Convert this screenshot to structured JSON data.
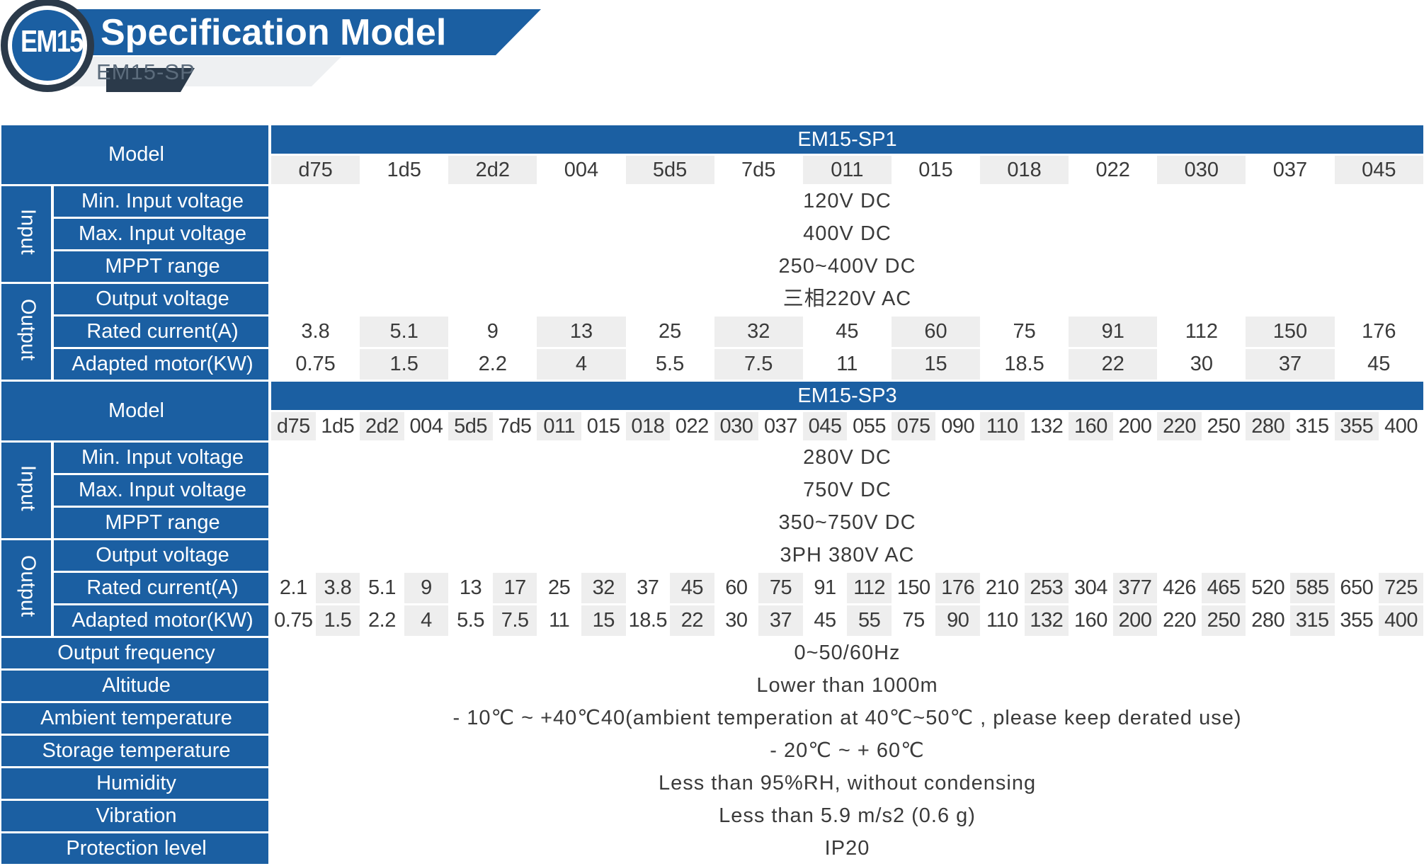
{
  "header": {
    "logo": "EM15",
    "title": "Specification Model",
    "subtitle": "EM15-SP"
  },
  "colors": {
    "primary": "#1b5fa2",
    "dark_ring": "#2b3a4a",
    "light_band": "#eeeeee"
  },
  "row_labels": {
    "model": "Model",
    "input": "Input",
    "output": "Output",
    "min_input_voltage": "Min. Input voltage",
    "max_input_voltage": "Max. Input voltage",
    "mppt_range": "MPPT range",
    "output_voltage": "Output voltage",
    "rated_current": "Rated current(A)",
    "adapted_motor": "Adapted motor(KW)"
  },
  "sp1": {
    "series": "EM15-SP1",
    "codes": [
      "d75",
      "1d5",
      "2d2",
      "004",
      "5d5",
      "7d5",
      "011",
      "015",
      "018",
      "022",
      "030",
      "037",
      "045"
    ],
    "min_input_voltage": "120V DC",
    "max_input_voltage": "400V DC",
    "mppt_range": "250~400V DC",
    "output_voltage": "三相220V AC",
    "rated_current": [
      "3.8",
      "5.1",
      "9",
      "13",
      "25",
      "32",
      "45",
      "60",
      "75",
      "91",
      "112",
      "150",
      "176"
    ],
    "adapted_motor": [
      "0.75",
      "1.5",
      "2.2",
      "4",
      "5.5",
      "7.5",
      "11",
      "15",
      "18.5",
      "22",
      "30",
      "37",
      "45"
    ]
  },
  "sp3": {
    "series": "EM15-SP3",
    "codes": [
      "d75",
      "1d5",
      "2d2",
      "004",
      "5d5",
      "7d5",
      "011",
      "015",
      "018",
      "022",
      "030",
      "037",
      "045",
      "055",
      "075",
      "090",
      "110",
      "132",
      "160",
      "200",
      "220",
      "250",
      "280",
      "315",
      "355",
      "400"
    ],
    "min_input_voltage": "280V DC",
    "max_input_voltage": "750V DC",
    "mppt_range": "350~750V DC",
    "output_voltage": "3PH 380V AC",
    "rated_current": [
      "2.1",
      "3.8",
      "5.1",
      "9",
      "13",
      "17",
      "25",
      "32",
      "37",
      "45",
      "60",
      "75",
      "91",
      "112",
      "150",
      "176",
      "210",
      "253",
      "304",
      "377",
      "426",
      "465",
      "520",
      "585",
      "650",
      "725"
    ],
    "adapted_motor": [
      "0.75",
      "1.5",
      "2.2",
      "4",
      "5.5",
      "7.5",
      "11",
      "15",
      "18.5",
      "22",
      "30",
      "37",
      "45",
      "55",
      "75",
      "90",
      "110",
      "132",
      "160",
      "200",
      "220",
      "250",
      "280",
      "315",
      "355",
      "400"
    ]
  },
  "common": [
    {
      "label": "Output frequency",
      "value": "0~50/60Hz"
    },
    {
      "label": "Altitude",
      "value": "Lower than 1000m"
    },
    {
      "label": "Ambient temperature",
      "value": "- 10℃ ~ +40℃40(ambient temperation at 40℃~50℃ , please keep derated use)"
    },
    {
      "label": "Storage temperature",
      "value": "- 20℃ ~ + 60℃"
    },
    {
      "label": "Humidity",
      "value": "Less than 95%RH, without condensing"
    },
    {
      "label": "Vibration",
      "value": "Less than 5.9 m/s2 (0.6 g)"
    },
    {
      "label": "Protection level",
      "value": "IP20"
    }
  ]
}
